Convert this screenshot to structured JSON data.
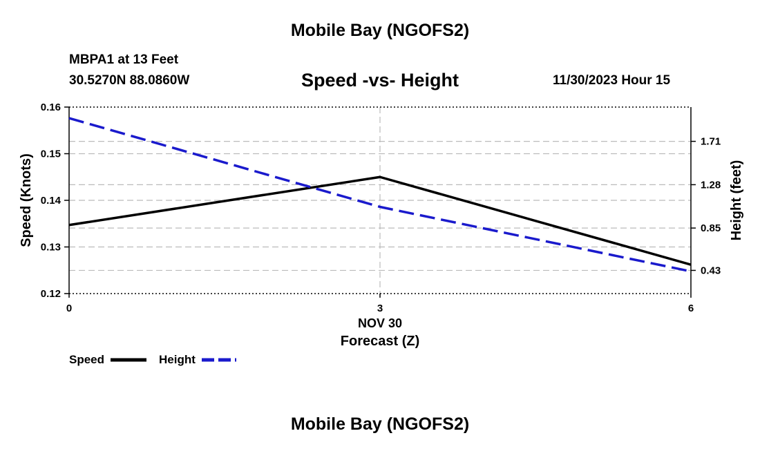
{
  "page": {
    "title_top": "Mobile Bay (NGOFS2)",
    "title_bottom": "Mobile Bay (NGOFS2)",
    "station": "MBPA1 at 13 Feet",
    "coords": "30.5270N  88.0860W",
    "datetime": "11/30/2023 Hour 15"
  },
  "colors": {
    "speed": "#000000",
    "height": "#1a1acc",
    "grid": "#bbbbbb"
  },
  "chart_data": {
    "type": "line",
    "title": "Speed -vs- Height",
    "xlabel": "Forecast (Z)",
    "xdate": "NOV 30",
    "ylabel": "Speed (Knots)",
    "y2label": "Height (feet)",
    "x": [
      0,
      3,
      6
    ],
    "xticks": [
      "0",
      "3",
      "6"
    ],
    "xlim": [
      0,
      6
    ],
    "ylim": [
      0.12,
      0.16
    ],
    "yticks": [
      "0.16",
      "0.15",
      "0.14",
      "0.13",
      "0.12"
    ],
    "y2lim": [
      0.2,
      2.05
    ],
    "y2ticks": [
      "1.71",
      "1.28",
      "0.85",
      "0.43"
    ],
    "y2tick_values": [
      1.71,
      1.28,
      0.85,
      0.43
    ],
    "grid": true,
    "series": [
      {
        "name": "Speed",
        "axis": "left",
        "style": "solid",
        "values": [
          0.1347,
          0.145,
          0.1262
        ]
      },
      {
        "name": "Height",
        "axis": "right",
        "style": "dashed",
        "values": [
          1.94,
          1.06,
          0.42
        ]
      }
    ],
    "legend": [
      "Speed",
      "Height"
    ]
  }
}
